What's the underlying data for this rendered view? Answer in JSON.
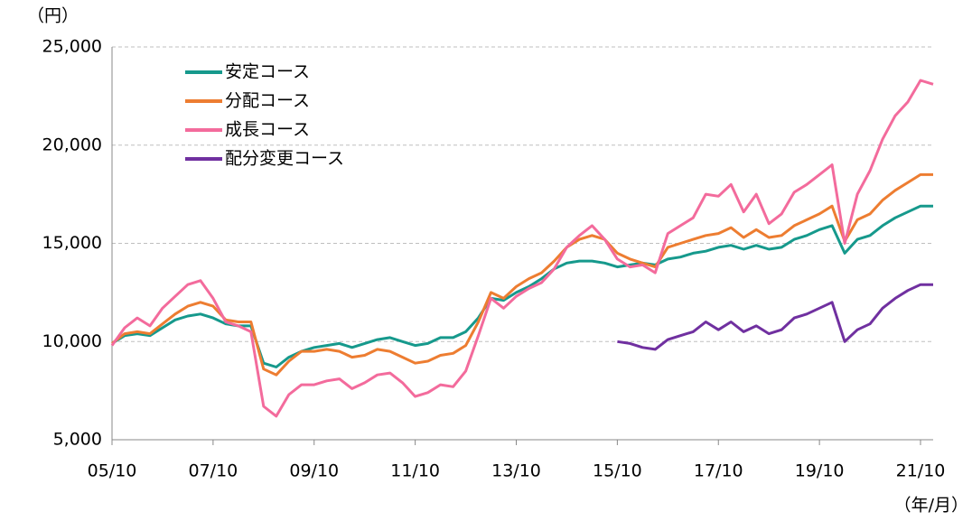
{
  "chart_data": {
    "type": "line",
    "y_unit_label": "（円）",
    "x_unit_label": "（年/月）",
    "x": [
      "05/10",
      "06/01",
      "06/04",
      "06/07",
      "06/10",
      "07/01",
      "07/04",
      "07/07",
      "07/10",
      "08/01",
      "08/04",
      "08/07",
      "08/10",
      "09/01",
      "09/04",
      "09/07",
      "09/10",
      "10/01",
      "10/04",
      "10/07",
      "10/10",
      "11/01",
      "11/04",
      "11/07",
      "11/10",
      "12/01",
      "12/04",
      "12/07",
      "12/10",
      "13/01",
      "13/04",
      "13/07",
      "13/10",
      "14/01",
      "14/04",
      "14/07",
      "14/10",
      "15/01",
      "15/04",
      "15/07",
      "15/10",
      "16/01",
      "16/04",
      "16/07",
      "16/10",
      "17/01",
      "17/04",
      "17/07",
      "17/10",
      "18/01",
      "18/04",
      "18/07",
      "18/10",
      "19/01",
      "19/04",
      "19/07",
      "19/10",
      "20/01",
      "20/04",
      "20/07",
      "20/10",
      "21/01",
      "21/04",
      "21/07",
      "21/10",
      "22/01"
    ],
    "series": [
      {
        "name": "安定コース",
        "color": "#16998c",
        "values": [
          9900,
          10300,
          10400,
          10300,
          10700,
          11100,
          11300,
          11400,
          11200,
          10900,
          10800,
          10800,
          8900,
          8700,
          9200,
          9500,
          9700,
          9800,
          9900,
          9700,
          9900,
          10100,
          10200,
          10000,
          9800,
          9900,
          10200,
          10200,
          10500,
          11200,
          12200,
          12100,
          12500,
          12800,
          13200,
          13700,
          14000,
          14100,
          14100,
          14000,
          13800,
          13900,
          14000,
          13900,
          14200,
          14300,
          14500,
          14600,
          14800,
          14900,
          14700,
          14900,
          14700,
          14800,
          15200,
          15400,
          15700,
          15900,
          14500,
          15200,
          15400,
          15900,
          16300,
          16600,
          16900,
          16900
        ]
      },
      {
        "name": "分配コース",
        "color": "#ed7d31",
        "values": [
          9900,
          10400,
          10500,
          10400,
          10900,
          11400,
          11800,
          12000,
          11800,
          11100,
          11000,
          11000,
          8600,
          8300,
          9000,
          9500,
          9500,
          9600,
          9500,
          9200,
          9300,
          9600,
          9500,
          9200,
          8900,
          9000,
          9300,
          9400,
          9800,
          11000,
          12500,
          12200,
          12800,
          13200,
          13500,
          14100,
          14800,
          15200,
          15400,
          15200,
          14500,
          14200,
          14000,
          13800,
          14800,
          15000,
          15200,
          15400,
          15500,
          15800,
          15300,
          15700,
          15300,
          15400,
          15900,
          16200,
          16500,
          16900,
          15100,
          16200,
          16500,
          17200,
          17700,
          18100,
          18500,
          18500
        ]
      },
      {
        "name": "成長コース",
        "color": "#f36b9c",
        "values": [
          9800,
          10700,
          11200,
          10800,
          11700,
          12300,
          12900,
          13100,
          12200,
          11000,
          10800,
          10500,
          6700,
          6200,
          7300,
          7800,
          7800,
          8000,
          8100,
          7600,
          7900,
          8300,
          8400,
          7900,
          7200,
          7400,
          7800,
          7700,
          8500,
          10300,
          12200,
          11700,
          12300,
          12700,
          13000,
          13700,
          14800,
          15400,
          15900,
          15200,
          14200,
          13800,
          13900,
          13500,
          15500,
          15900,
          16300,
          17500,
          17400,
          18000,
          16600,
          17500,
          16000,
          16500,
          17600,
          18000,
          18500,
          19000,
          15000,
          17500,
          18700,
          20300,
          21500,
          22200,
          23300,
          23100
        ]
      },
      {
        "name": "配分変更コース",
        "color": "#7030a0",
        "values": [
          null,
          null,
          null,
          null,
          null,
          null,
          null,
          null,
          null,
          null,
          null,
          null,
          null,
          null,
          null,
          null,
          null,
          null,
          null,
          null,
          null,
          null,
          null,
          null,
          null,
          null,
          null,
          null,
          null,
          null,
          null,
          null,
          null,
          null,
          null,
          null,
          null,
          null,
          null,
          null,
          10000,
          9900,
          9700,
          9600,
          10100,
          10300,
          10500,
          11000,
          10600,
          11000,
          10500,
          10800,
          10400,
          10600,
          11200,
          11400,
          11700,
          12000,
          10000,
          10600,
          10900,
          11700,
          12200,
          12600,
          12900,
          12900
        ]
      }
    ],
    "xlim": [
      "05/10",
      "22/01"
    ],
    "xticks": [
      "05/10",
      "07/10",
      "09/10",
      "11/10",
      "13/10",
      "15/10",
      "17/10",
      "19/10",
      "21/10"
    ],
    "ylim": [
      5000,
      25000
    ],
    "yticks": [
      {
        "value": 5000,
        "label": "5,000"
      },
      {
        "value": 10000,
        "label": "10,000"
      },
      {
        "value": 15000,
        "label": "15,000"
      },
      {
        "value": 20000,
        "label": "20,000"
      },
      {
        "value": 25000,
        "label": "25,000"
      }
    ],
    "grid": true,
    "legend": "upper left"
  }
}
